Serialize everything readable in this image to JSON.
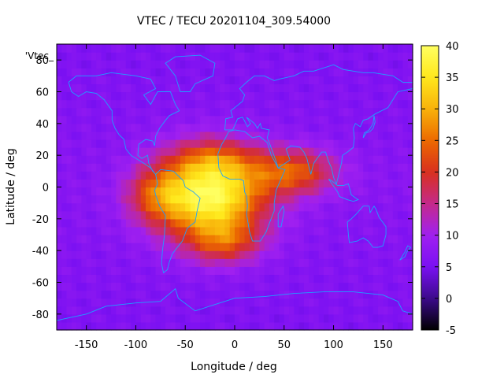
{
  "chart_data": {
    "type": "heatmap",
    "title": "VTEC / TECU 20201104_309.54000",
    "xlabel": "Longitude / deg",
    "ylabel": "Latitude / deg",
    "key_label": "'Vtec_",
    "xlim": [
      -180,
      180
    ],
    "ylim": [
      -90,
      90
    ],
    "xticks": [
      -150,
      -100,
      -50,
      0,
      50,
      100,
      150
    ],
    "yticks": [
      -80,
      -60,
      -40,
      -20,
      0,
      20,
      40,
      60,
      80
    ],
    "color_range": [
      -5,
      40
    ],
    "colorbar_ticks": [
      -5,
      0,
      5,
      10,
      15,
      20,
      25,
      30,
      35,
      40
    ],
    "background_level_tecu": 7,
    "features": [
      {
        "name": "main-enhancement",
        "lon": -25,
        "lat": -5,
        "peak_tecu": 34,
        "lon_sigma": 38,
        "lat_sigma": 19
      },
      {
        "name": "north-lobe",
        "lon": -20,
        "lat": 18,
        "peak_tecu": 8,
        "lon_sigma": 28,
        "lat_sigma": 8
      },
      {
        "name": "indian-ocean-extension",
        "lon": 60,
        "lat": 10,
        "peak_tecu": 17,
        "lon_sigma": 30,
        "lat_sigma": 10
      },
      {
        "name": "southern-extension",
        "lon": -10,
        "lat": -35,
        "peak_tecu": 12,
        "lon_sigma": 25,
        "lat_sigma": 9
      },
      {
        "name": "western-extension",
        "lon": -80,
        "lat": -5,
        "peak_tecu": 11,
        "lon_sigma": 20,
        "lat_sigma": 12
      }
    ],
    "coastline_color": "#1ea0ff",
    "colormap": [
      "#000000",
      "#3c0a8c",
      "#7a10f2",
      "#a020f0",
      "#c42a8a",
      "#d8301e",
      "#ec6a00",
      "#f8b20a",
      "#ffe81c",
      "#ffff60"
    ]
  }
}
